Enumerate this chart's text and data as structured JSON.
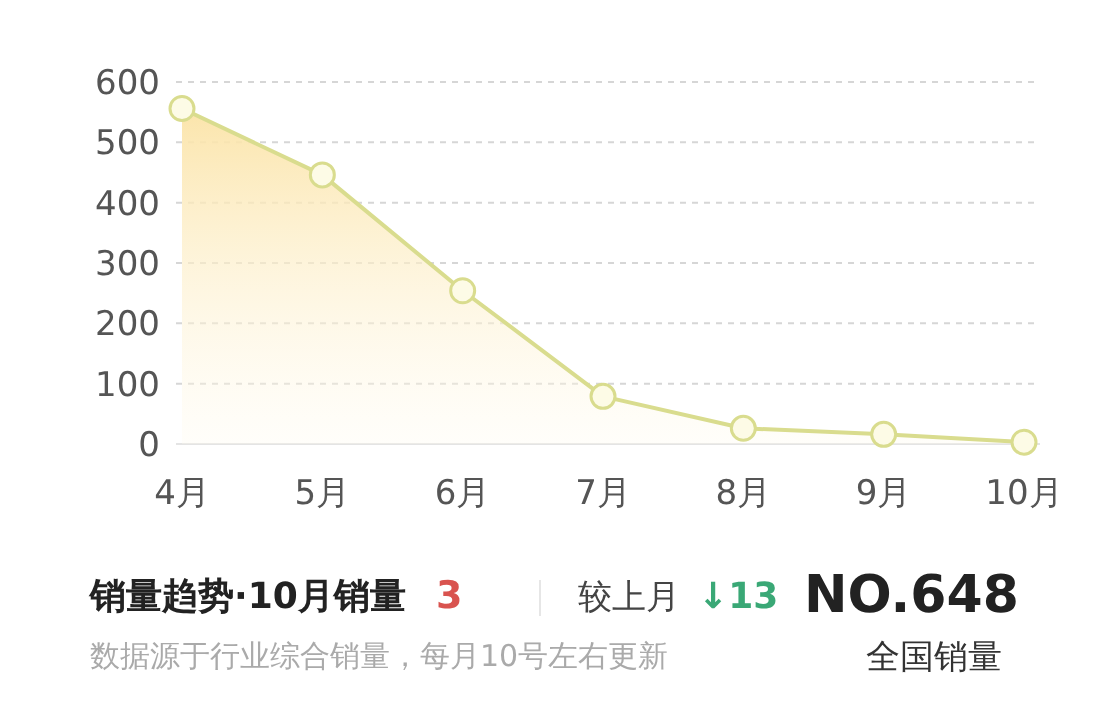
{
  "chart_data": {
    "type": "area",
    "title": "销量趋势·10月销量",
    "categories": [
      "4月",
      "5月",
      "6月",
      "7月",
      "8月",
      "9月",
      "10月"
    ],
    "series": [
      {
        "color": "#d9dc8e",
        "values": [
          556,
          446,
          254,
          79,
          26,
          16,
          3
        ]
      }
    ],
    "ylim": [
      0,
      600
    ],
    "yticks": [
      0,
      100,
      200,
      300,
      400,
      500,
      600
    ],
    "grid": "y",
    "marker": "circle",
    "annotations": [
      "3",
      "较上月",
      "↓13",
      "NO.648",
      "数据源于行业综合销量，每月10号左右更新",
      "全国销量"
    ]
  }
}
